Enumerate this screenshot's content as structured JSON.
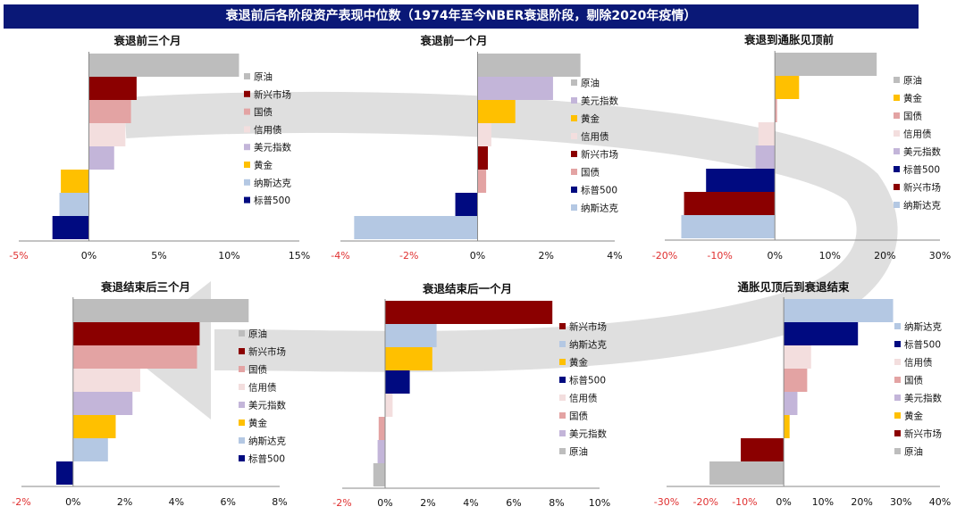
{
  "banner": {
    "title": "衰退前后各阶段资产表现中位数（1974年至今NBER衰退阶段，剔除2020年疫情）"
  },
  "colors": {
    "原油": "#bdbdbd",
    "新兴市场": "#8b0000",
    "国债": "#e3a3a3",
    "信用债": "#f3dede",
    "美元指数": "#c3b5d9",
    "黄金": "#ffc000",
    "纳斯达克": "#b4c8e3",
    "标普500": "#000a80"
  },
  "chart_data": [
    {
      "type": "bar",
      "orientation": "horizontal",
      "title": "衰退前三个月",
      "categories": [
        "原油",
        "新兴市场",
        "国债",
        "信用债",
        "美元指数",
        "黄金",
        "纳斯达克",
        "标普500"
      ],
      "values": [
        10.7,
        3.4,
        3.0,
        2.6,
        1.8,
        -2.0,
        -2.1,
        -2.6
      ],
      "xlim": [
        -5,
        15
      ],
      "ticks": [
        "-5%",
        "0%",
        "5%",
        "10%",
        "15%"
      ],
      "tick_values": [
        -5,
        0,
        5,
        10,
        15
      ]
    },
    {
      "type": "bar",
      "orientation": "horizontal",
      "title": "衰退前一个月",
      "categories": [
        "原油",
        "美元指数",
        "黄金",
        "信用债",
        "新兴市场",
        "国债",
        "标普500",
        "纳斯达克"
      ],
      "values": [
        3.0,
        2.2,
        1.1,
        0.4,
        0.3,
        0.25,
        -0.65,
        -3.6
      ],
      "xlim": [
        -4,
        4
      ],
      "ticks": [
        "-4%",
        "-2%",
        "0%",
        "2%",
        "4%"
      ],
      "tick_values": [
        -4,
        -2,
        0,
        2,
        4
      ]
    },
    {
      "type": "bar",
      "orientation": "horizontal",
      "title": "衰退到通胀见顶前",
      "categories": [
        "原油",
        "黄金",
        "国债",
        "信用债",
        "美元指数",
        "标普500",
        "新兴市场",
        "纳斯达克"
      ],
      "values": [
        18.5,
        4.4,
        0.4,
        -3.0,
        -3.5,
        -12.5,
        -16.5,
        -17.0
      ],
      "xlim": [
        -20,
        30
      ],
      "ticks": [
        "-20%",
        "-10%",
        "0%",
        "10%",
        "20%",
        "30%"
      ],
      "tick_values": [
        -20,
        -10,
        0,
        10,
        20,
        30
      ]
    },
    {
      "type": "bar",
      "orientation": "horizontal",
      "title": "衰退结束后三个月",
      "categories": [
        "原油",
        "新兴市场",
        "国债",
        "信用债",
        "美元指数",
        "黄金",
        "纳斯达克",
        "标普500"
      ],
      "values": [
        6.8,
        4.9,
        4.8,
        2.6,
        2.3,
        1.65,
        1.35,
        -0.65
      ],
      "xlim": [
        -2,
        8
      ],
      "ticks": [
        "-2%",
        "0%",
        "2%",
        "4%",
        "6%",
        "8%"
      ],
      "tick_values": [
        -2,
        0,
        2,
        4,
        6,
        8
      ]
    },
    {
      "type": "bar",
      "orientation": "horizontal",
      "title": "衰退结束后一个月",
      "categories": [
        "新兴市场",
        "纳斯达克",
        "黄金",
        "标普500",
        "信用债",
        "国债",
        "美元指数",
        "原油"
      ],
      "values": [
        7.8,
        2.4,
        2.2,
        1.15,
        0.35,
        -0.3,
        -0.35,
        -0.55
      ],
      "xlim": [
        -2,
        10
      ],
      "ticks": [
        "-2%",
        "0%",
        "2%",
        "4%",
        "6%",
        "8%",
        "10%"
      ],
      "tick_values": [
        -2,
        0,
        2,
        4,
        6,
        8,
        10
      ]
    },
    {
      "type": "bar",
      "orientation": "horizontal",
      "title": "通胀见顶后到衰退结束",
      "categories": [
        "纳斯达克",
        "标普500",
        "信用债",
        "国债",
        "美元指数",
        "黄金",
        "新兴市场",
        "原油"
      ],
      "values": [
        28.0,
        19.0,
        7.0,
        6.0,
        3.5,
        1.5,
        -11.0,
        -19.0
      ],
      "xlim": [
        -30,
        40
      ],
      "ticks": [
        "-30%",
        "-20%",
        "-10%",
        "0%",
        "10%",
        "20%",
        "30%",
        "40%"
      ],
      "tick_values": [
        -30,
        -20,
        -10,
        0,
        10,
        20,
        30,
        40
      ]
    }
  ]
}
